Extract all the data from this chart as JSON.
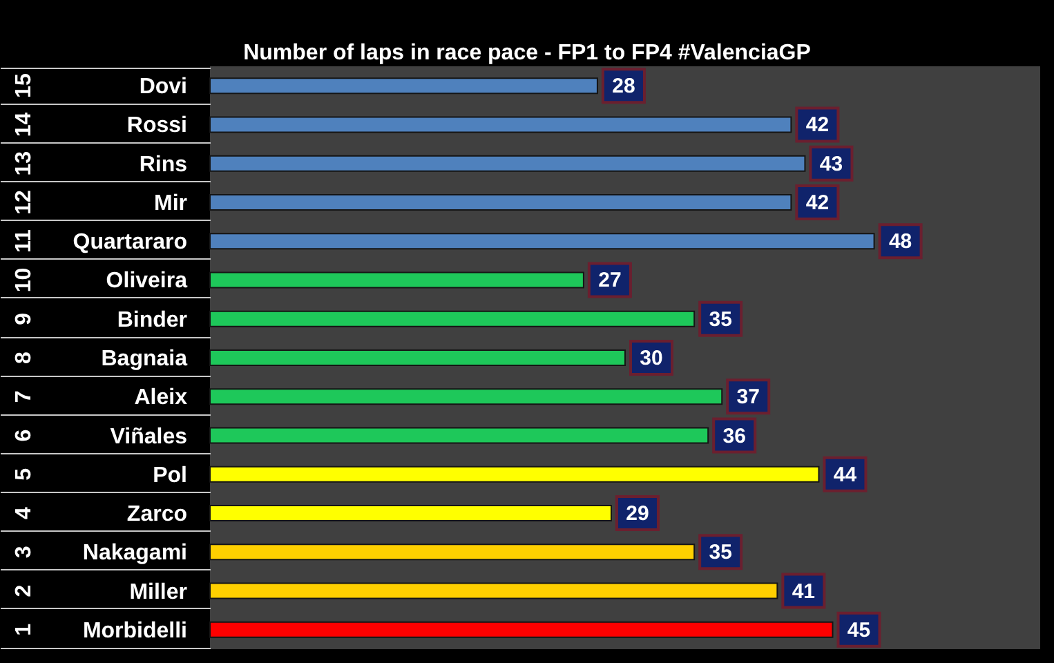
{
  "chart_data": {
    "type": "bar",
    "orientation": "horizontal",
    "title": "Number of laps in race pace - FP1 to FP4 #ValenciaGP",
    "categories": [
      "Dovi",
      "Rossi",
      "Rins",
      "Mir",
      "Quartararo",
      "Oliveira",
      "Binder",
      "Bagnaia",
      "Aleix",
      "Viñales",
      "Pol",
      "Zarco",
      "Nakagami",
      "Miller",
      "Morbidelli"
    ],
    "values": [
      28,
      42,
      43,
      42,
      48,
      27,
      35,
      30,
      37,
      36,
      44,
      29,
      35,
      41,
      45
    ],
    "colors": [
      "#4f81bd",
      "#4f81bd",
      "#4f81bd",
      "#4f81bd",
      "#4f81bd",
      "#1ec85a",
      "#1ec85a",
      "#1ec85a",
      "#1ec85a",
      "#1ec85a",
      "#ffff00",
      "#ffff00",
      "#ffd000",
      "#ffd000",
      "#ff0000"
    ],
    "xlim": [
      0,
      60
    ],
    "data_labels": true,
    "annotations": [
      "15",
      "14",
      "13",
      "12",
      "11",
      "10",
      "9",
      "8",
      "7",
      "6",
      "5",
      "4",
      "3",
      "2",
      "1"
    ]
  }
}
